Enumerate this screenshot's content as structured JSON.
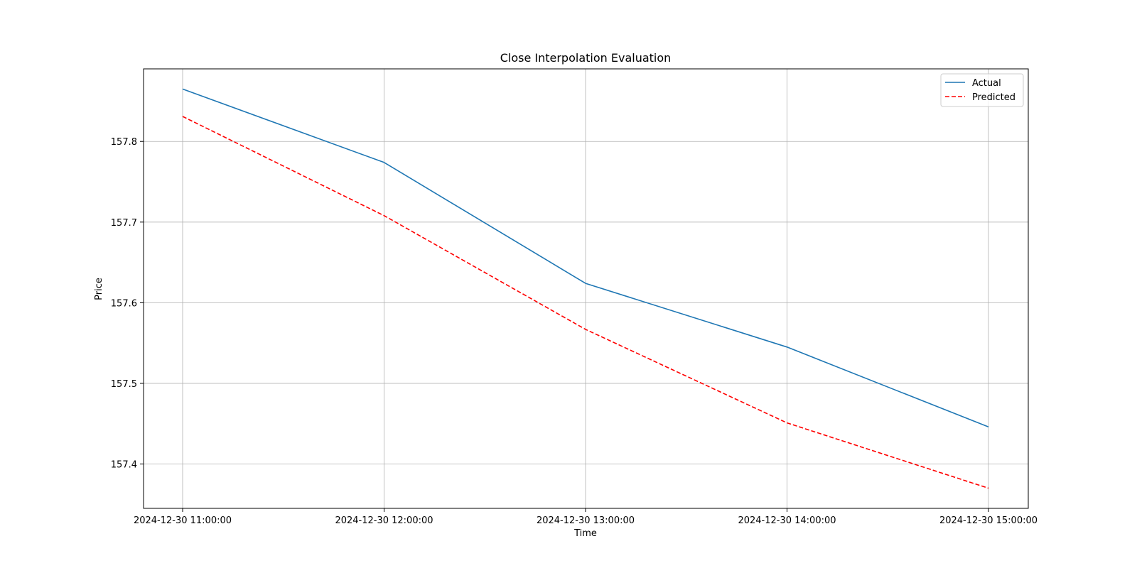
{
  "chart_data": {
    "type": "line",
    "title": "Close Interpolation Evaluation",
    "xlabel": "Time",
    "ylabel": "Price",
    "x": [
      "2024-12-30 11:00:00",
      "2024-12-30 12:00:00",
      "2024-12-30 13:00:00",
      "2024-12-30 14:00:00",
      "2024-12-30 15:00:00"
    ],
    "ylim": [
      157.345,
      157.89
    ],
    "yticks": [
      157.4,
      157.5,
      157.6,
      157.7,
      157.8
    ],
    "ytick_labels": [
      "157.4",
      "157.5",
      "157.6",
      "157.7",
      "157.8"
    ],
    "grid": true,
    "legend_position": "top-right",
    "series": [
      {
        "name": "Actual",
        "values": [
          157.865,
          157.774,
          157.624,
          157.545,
          157.446
        ],
        "color": "#1f77b4",
        "style": "solid"
      },
      {
        "name": "Predicted",
        "values": [
          157.831,
          157.708,
          157.567,
          157.451,
          157.37
        ],
        "color": "#ff0000",
        "style": "dashed"
      }
    ]
  }
}
